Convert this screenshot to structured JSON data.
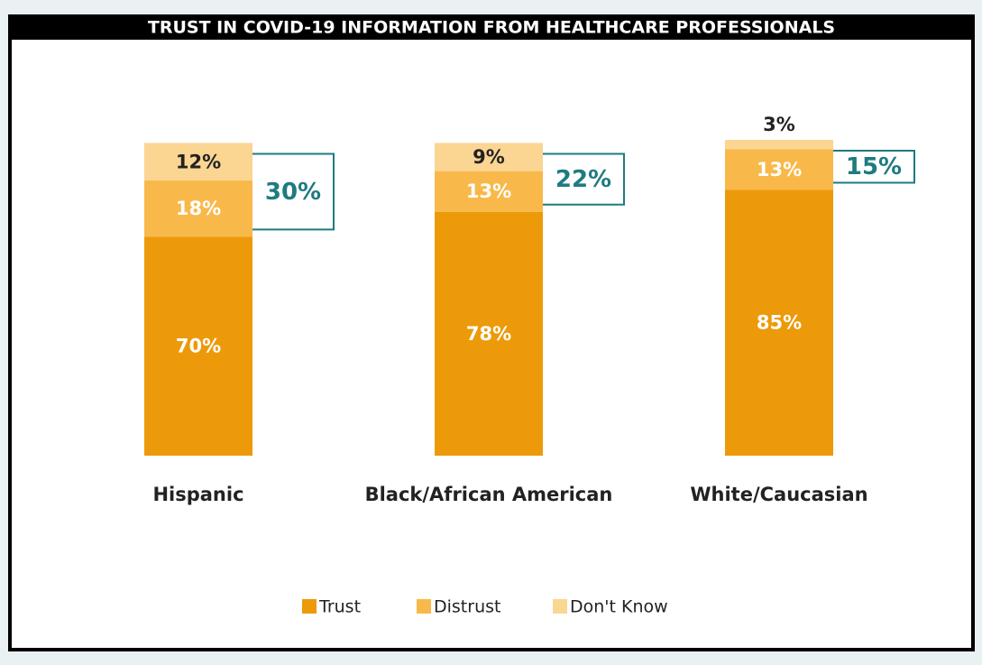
{
  "chart_data": {
    "type": "stacked_bar",
    "title": "TRUST IN COVID-19 INFORMATION FROM HEALTHCARE PROFESSIONALS",
    "categories": [
      "Hispanic",
      "Black/African American",
      "White/Caucasian"
    ],
    "series": [
      {
        "name": "Trust",
        "color": "#ec9a0a",
        "values": [
          70,
          78,
          85
        ],
        "value_labels": [
          "70%",
          "78%",
          "85%"
        ]
      },
      {
        "name": "Distrust",
        "color": "#f9b84a",
        "values": [
          18,
          13,
          13
        ],
        "value_labels": [
          "18%",
          "13%",
          "13%"
        ]
      },
      {
        "name": "Don't Know",
        "color": "#fbd592",
        "values": [
          12,
          9,
          3
        ],
        "value_labels": [
          "12%",
          "9%",
          "3%"
        ]
      }
    ],
    "annotations": [
      "30%",
      "22%",
      "15%"
    ],
    "annotation_color": "#1e7b80",
    "legend": "bottom"
  }
}
